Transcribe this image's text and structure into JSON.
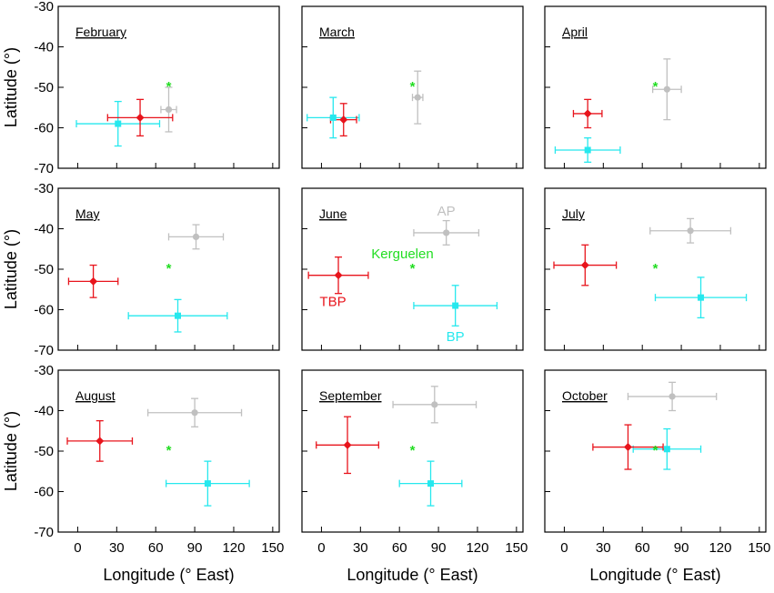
{
  "chart_data": {
    "type": "scatter",
    "xlabel": "Longitude (° East)",
    "ylabel": "Latitude (°)",
    "xlim": [
      -15,
      155
    ],
    "ylim": [
      -70,
      -30
    ],
    "x_ticks": [
      0,
      30,
      60,
      90,
      120,
      150
    ],
    "y_ticks": [
      -30,
      -40,
      -50,
      -60,
      -70
    ],
    "grid": false,
    "colors": {
      "TBP": "#e8141c",
      "BP": "#26e8ee",
      "AP": "#c0c0c0",
      "Kerguelen": "#22dd22"
    },
    "kerguelen": {
      "x": 70,
      "y": -49.5
    },
    "annotations": [
      {
        "text": "AP",
        "series": "AP"
      },
      {
        "text": "Kerguelen",
        "series": "Kerguelen"
      },
      {
        "text": "TBP",
        "series": "TBP"
      },
      {
        "text": "BP",
        "series": "BP"
      }
    ],
    "panels": [
      {
        "month": "February",
        "TBP": {
          "x": 48,
          "y": -57.5,
          "xerr": 25,
          "yerr": 4.5
        },
        "BP": {
          "x": 31,
          "y": -59,
          "xerr": 32,
          "yerr": 5.5
        },
        "AP": {
          "x": 70,
          "y": -55.5,
          "xerr": 6,
          "yerr": 5.5
        }
      },
      {
        "month": "March",
        "TBP": {
          "x": 17,
          "y": -58,
          "xerr": 10,
          "yerr": 4
        },
        "BP": {
          "x": 9,
          "y": -57.5,
          "xerr": 20,
          "yerr": 5
        },
        "AP": {
          "x": 74,
          "y": -52.5,
          "xerr": 4,
          "yerr": 6.5
        }
      },
      {
        "month": "April",
        "TBP": {
          "x": 18,
          "y": -56.5,
          "xerr": 11,
          "yerr": 3.5
        },
        "BP": {
          "x": 18,
          "y": -65.5,
          "xerr": 25,
          "yerr": 3
        },
        "AP": {
          "x": 79,
          "y": -50.5,
          "xerr": 11,
          "yerr": 7.5
        }
      },
      {
        "month": "May",
        "TBP": {
          "x": 12,
          "y": -53,
          "xerr": 19,
          "yerr": 4
        },
        "BP": {
          "x": 77,
          "y": -61.5,
          "xerr": 38,
          "yerr": 4
        },
        "AP": {
          "x": 91,
          "y": -42,
          "xerr": 21,
          "yerr": 3
        }
      },
      {
        "month": "June",
        "TBP": {
          "x": 13,
          "y": -51.5,
          "xerr": 23,
          "yerr": 4.5
        },
        "BP": {
          "x": 103,
          "y": -59,
          "xerr": 32,
          "yerr": 5
        },
        "AP": {
          "x": 96,
          "y": -41,
          "xerr": 25,
          "yerr": 3
        }
      },
      {
        "month": "July",
        "TBP": {
          "x": 16,
          "y": -49,
          "xerr": 24,
          "yerr": 5
        },
        "BP": {
          "x": 105,
          "y": -57,
          "xerr": 35,
          "yerr": 5
        },
        "AP": {
          "x": 97,
          "y": -40.5,
          "xerr": 31,
          "yerr": 3
        }
      },
      {
        "month": "August",
        "TBP": {
          "x": 17,
          "y": -47.5,
          "xerr": 25,
          "yerr": 5
        },
        "BP": {
          "x": 100,
          "y": -58,
          "xerr": 32,
          "yerr": 5.5
        },
        "AP": {
          "x": 90,
          "y": -40.5,
          "xerr": 36,
          "yerr": 3.5
        }
      },
      {
        "month": "September",
        "TBP": {
          "x": 20,
          "y": -48.5,
          "xerr": 24,
          "yerr": 7
        },
        "BP": {
          "x": 84,
          "y": -58,
          "xerr": 24,
          "yerr": 5.5
        },
        "AP": {
          "x": 87,
          "y": -38.5,
          "xerr": 32,
          "yerr": 4.5
        }
      },
      {
        "month": "October",
        "TBP": {
          "x": 49,
          "y": -49,
          "xerr": 27,
          "yerr": 5.5
        },
        "BP": {
          "x": 79,
          "y": -49.5,
          "xerr": 26,
          "yerr": 5
        },
        "AP": {
          "x": 83,
          "y": -36.5,
          "xerr": 34,
          "yerr": 3.5
        }
      }
    ]
  }
}
